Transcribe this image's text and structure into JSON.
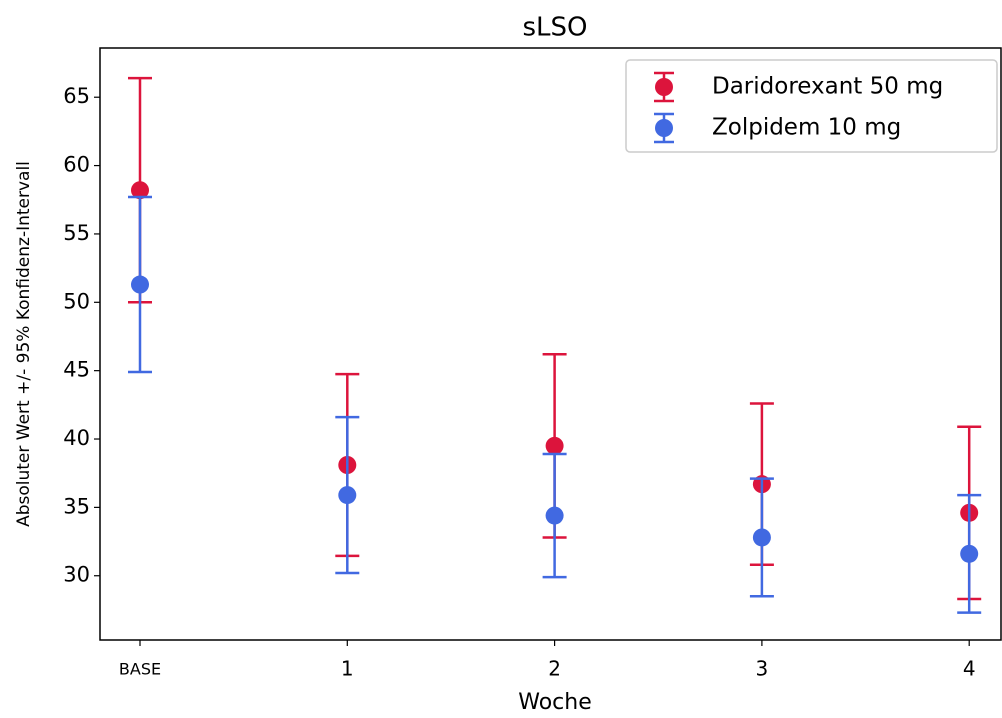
{
  "chart_data": {
    "type": "errorbar",
    "title": "sLSO",
    "x_label": "Woche",
    "y_label": "Absoluter Wert +/- 95% Konfidenz-Intervall",
    "categories": [
      "BASE",
      "1",
      "2",
      "3",
      "4"
    ],
    "series": [
      {
        "name": "Daridorexant 50 mg",
        "color": "#dc143c",
        "values": [
          58.2,
          38.1,
          39.5,
          36.7,
          34.6
        ],
        "errors": [
          8.2,
          6.65,
          6.7,
          5.9,
          6.3
        ]
      },
      {
        "name": "Zolpidem 10 mg",
        "color": "#4169e1",
        "values": [
          51.3,
          35.9,
          34.4,
          32.8,
          31.6
        ],
        "errors": [
          6.4,
          5.7,
          4.5,
          4.3,
          4.3
        ]
      }
    ],
    "ylim": [
      25.3,
      68.6
    ],
    "yticks": [
      30,
      35,
      40,
      45,
      50,
      55,
      60,
      65
    ],
    "legend": "upper right"
  }
}
